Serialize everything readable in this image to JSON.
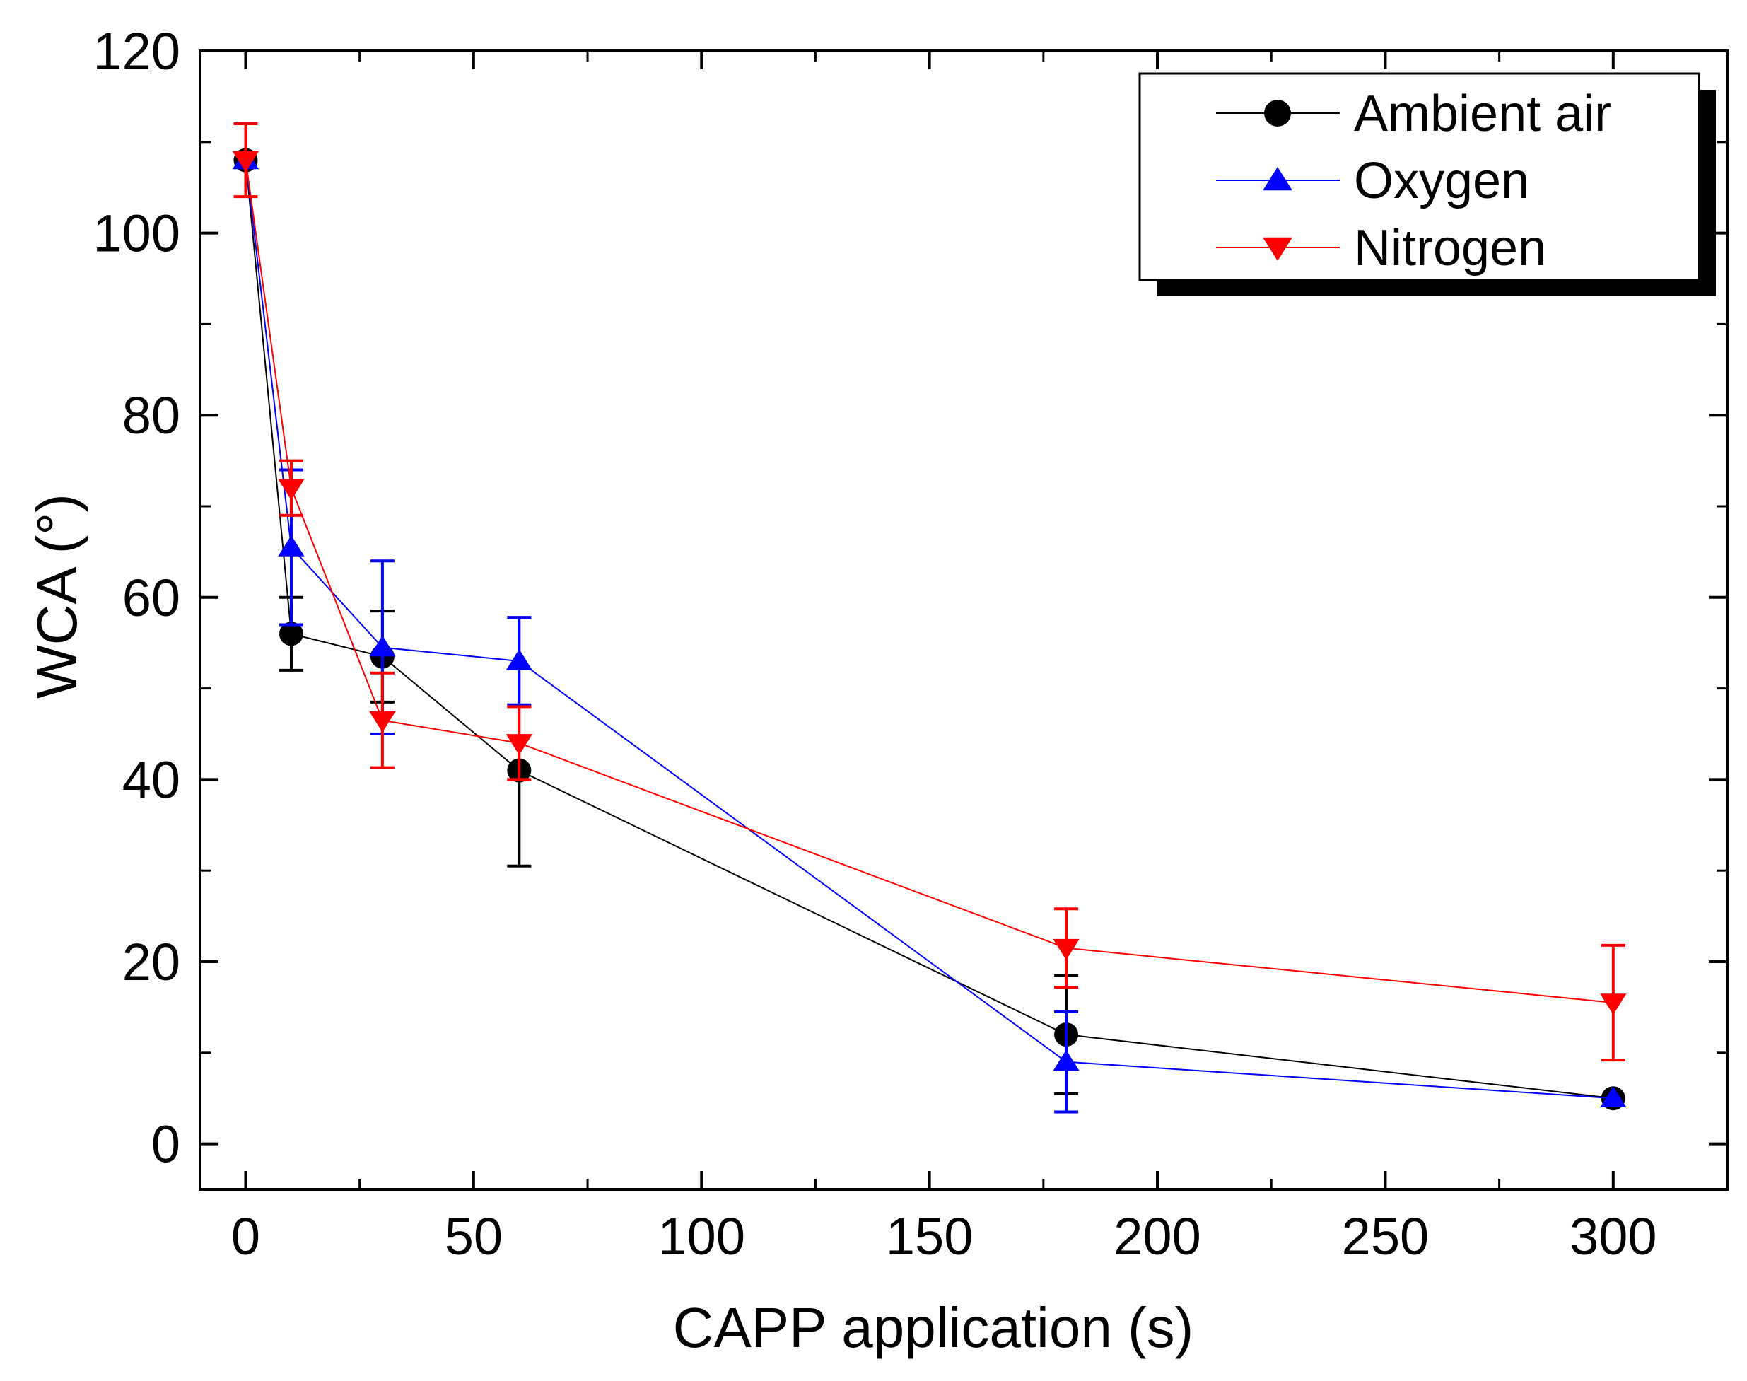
{
  "chart_data": {
    "type": "line",
    "title": "",
    "xlabel": "CAPP application (s)",
    "ylabel": "WCA (°)",
    "xlim": [
      -10,
      325
    ],
    "ylim": [
      -5,
      120
    ],
    "xticks": [
      0,
      50,
      100,
      150,
      200,
      250,
      300
    ],
    "yticks": [
      0,
      20,
      40,
      60,
      80,
      100,
      120
    ],
    "xtick_labels": [
      "0",
      "50",
      "100",
      "150",
      "200",
      "250",
      "300"
    ],
    "ytick_labels": [
      "0",
      "20",
      "40",
      "60",
      "80",
      "100",
      "120"
    ],
    "grid": false,
    "legend_position": "top-right",
    "series": [
      {
        "name": "Ambient air",
        "color": "#000000",
        "marker": "circle",
        "x": [
          0,
          10,
          30,
          60,
          180,
          300
        ],
        "y": [
          108,
          56,
          53.5,
          41,
          12,
          5
        ],
        "err_upper": [
          0,
          4,
          5,
          0,
          6.5,
          0
        ],
        "err_lower": [
          0,
          4,
          5,
          10.5,
          6.5,
          0
        ]
      },
      {
        "name": "Oxygen",
        "color": "#0000ff",
        "marker": "triangle-up",
        "x": [
          0,
          10,
          30,
          60,
          180,
          300
        ],
        "y": [
          108,
          65.5,
          54.5,
          53,
          9,
          5
        ],
        "err_upper": [
          0,
          8.5,
          9.5,
          4.8,
          5.5,
          0
        ],
        "err_lower": [
          0,
          8.5,
          9.5,
          4.8,
          5.5,
          0
        ]
      },
      {
        "name": "Nitrogen",
        "color": "#ff0000",
        "marker": "triangle-down",
        "x": [
          0,
          10,
          30,
          60,
          180,
          300
        ],
        "y": [
          108,
          72,
          46.5,
          44,
          21.5,
          15.5
        ],
        "err_upper": [
          4,
          3,
          5.2,
          4,
          4.3,
          6.3
        ],
        "err_lower": [
          4,
          3,
          5.2,
          4,
          4.3,
          6.3
        ]
      }
    ]
  }
}
